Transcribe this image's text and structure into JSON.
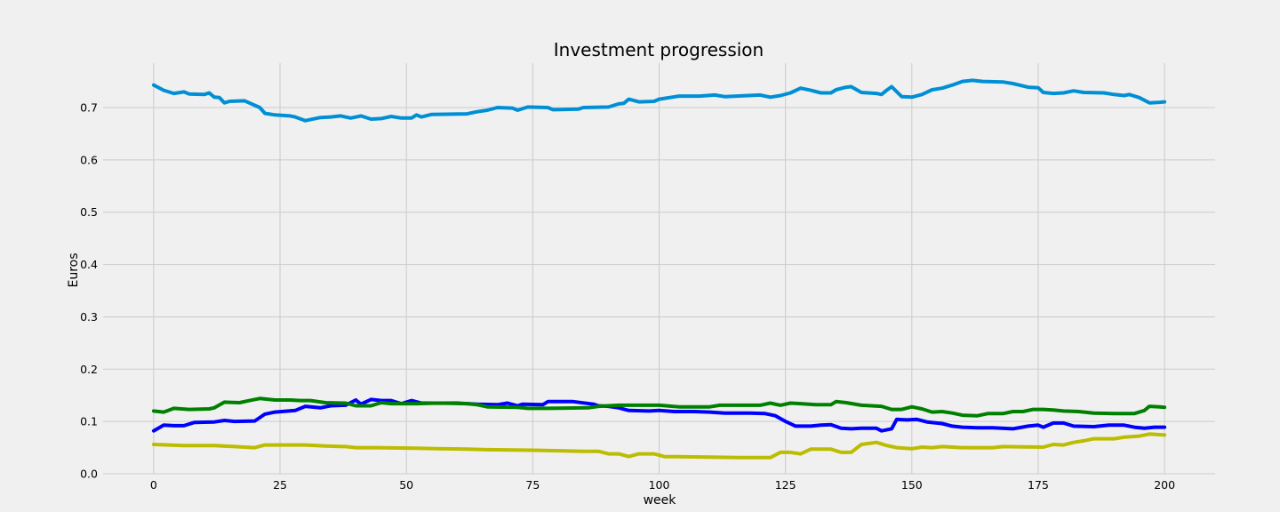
{
  "chart_data": {
    "type": "line",
    "title": "Investment progression",
    "xlabel": "week",
    "ylabel": "Euros",
    "xlim": [
      -10,
      210
    ],
    "ylim": [
      0.0,
      0.785
    ],
    "xticks": [
      0,
      25,
      50,
      75,
      100,
      125,
      150,
      175,
      200
    ],
    "xtick_labels": [
      "0",
      "25",
      "50",
      "75",
      "100",
      "125",
      "150",
      "175",
      "200"
    ],
    "yticks": [
      0.0,
      0.1,
      0.2,
      0.3,
      0.4,
      0.5,
      0.6,
      0.7
    ],
    "ytick_labels": [
      "0.0",
      "0.1",
      "0.2",
      "0.3",
      "0.4",
      "0.5",
      "0.6",
      "0.7"
    ],
    "grid": true,
    "background": "#f0f0f0",
    "series": [
      {
        "color": "#008fd5",
        "points": [
          [
            0,
            0.743
          ],
          [
            2,
            0.733
          ],
          [
            4,
            0.727
          ],
          [
            6,
            0.73
          ],
          [
            7,
            0.726
          ],
          [
            10,
            0.725
          ],
          [
            11,
            0.728
          ],
          [
            12,
            0.72
          ],
          [
            13,
            0.719
          ],
          [
            14,
            0.709
          ],
          [
            15,
            0.712
          ],
          [
            18,
            0.713
          ],
          [
            21,
            0.7
          ],
          [
            22,
            0.689
          ],
          [
            24,
            0.686
          ],
          [
            27,
            0.684
          ],
          [
            28,
            0.682
          ],
          [
            30,
            0.675
          ],
          [
            33,
            0.681
          ],
          [
            35,
            0.682
          ],
          [
            37,
            0.684
          ],
          [
            39,
            0.68
          ],
          [
            41,
            0.684
          ],
          [
            43,
            0.678
          ],
          [
            45,
            0.679
          ],
          [
            47,
            0.683
          ],
          [
            49,
            0.68
          ],
          [
            51,
            0.68
          ],
          [
            52,
            0.686
          ],
          [
            53,
            0.682
          ],
          [
            55,
            0.687
          ],
          [
            62,
            0.688
          ],
          [
            64,
            0.692
          ],
          [
            66,
            0.695
          ],
          [
            68,
            0.7
          ],
          [
            71,
            0.699
          ],
          [
            72,
            0.695
          ],
          [
            74,
            0.701
          ],
          [
            78,
            0.7
          ],
          [
            79,
            0.696
          ],
          [
            84,
            0.697
          ],
          [
            85,
            0.7
          ],
          [
            90,
            0.701
          ],
          [
            92,
            0.707
          ],
          [
            93,
            0.708
          ],
          [
            94,
            0.716
          ],
          [
            96,
            0.711
          ],
          [
            99,
            0.712
          ],
          [
            100,
            0.716
          ],
          [
            104,
            0.722
          ],
          [
            108,
            0.722
          ],
          [
            111,
            0.724
          ],
          [
            113,
            0.721
          ],
          [
            120,
            0.724
          ],
          [
            122,
            0.72
          ],
          [
            124,
            0.723
          ],
          [
            126,
            0.728
          ],
          [
            128,
            0.737
          ],
          [
            130,
            0.733
          ],
          [
            132,
            0.728
          ],
          [
            134,
            0.728
          ],
          [
            135,
            0.734
          ],
          [
            137,
            0.739
          ],
          [
            138,
            0.74
          ],
          [
            140,
            0.729
          ],
          [
            143,
            0.727
          ],
          [
            144,
            0.725
          ],
          [
            145,
            0.733
          ],
          [
            146,
            0.74
          ],
          [
            148,
            0.721
          ],
          [
            150,
            0.72
          ],
          [
            152,
            0.725
          ],
          [
            154,
            0.734
          ],
          [
            156,
            0.737
          ],
          [
            158,
            0.743
          ],
          [
            160,
            0.75
          ],
          [
            162,
            0.752
          ],
          [
            164,
            0.75
          ],
          [
            168,
            0.749
          ],
          [
            170,
            0.746
          ],
          [
            173,
            0.739
          ],
          [
            175,
            0.738
          ],
          [
            176,
            0.729
          ],
          [
            178,
            0.727
          ],
          [
            180,
            0.728
          ],
          [
            182,
            0.732
          ],
          [
            184,
            0.729
          ],
          [
            188,
            0.728
          ],
          [
            190,
            0.725
          ],
          [
            192,
            0.723
          ],
          [
            193,
            0.725
          ],
          [
            195,
            0.719
          ],
          [
            197,
            0.709
          ],
          [
            199,
            0.71
          ],
          [
            200,
            0.711
          ]
        ]
      },
      {
        "color": "#0000ff",
        "points": [
          [
            0,
            0.082
          ],
          [
            2,
            0.093
          ],
          [
            4,
            0.092
          ],
          [
            6,
            0.092
          ],
          [
            8,
            0.098
          ],
          [
            12,
            0.099
          ],
          [
            14,
            0.102
          ],
          [
            16,
            0.1
          ],
          [
            20,
            0.101
          ],
          [
            22,
            0.114
          ],
          [
            24,
            0.118
          ],
          [
            28,
            0.121
          ],
          [
            30,
            0.129
          ],
          [
            33,
            0.126
          ],
          [
            35,
            0.13
          ],
          [
            38,
            0.131
          ],
          [
            40,
            0.141
          ],
          [
            41,
            0.133
          ],
          [
            43,
            0.142
          ],
          [
            45,
            0.14
          ],
          [
            47,
            0.14
          ],
          [
            49,
            0.134
          ],
          [
            51,
            0.14
          ],
          [
            53,
            0.135
          ],
          [
            55,
            0.135
          ],
          [
            60,
            0.135
          ],
          [
            64,
            0.133
          ],
          [
            68,
            0.132
          ],
          [
            70,
            0.135
          ],
          [
            72,
            0.13
          ],
          [
            73,
            0.133
          ],
          [
            77,
            0.132
          ],
          [
            78,
            0.138
          ],
          [
            83,
            0.138
          ],
          [
            87,
            0.133
          ],
          [
            88,
            0.13
          ],
          [
            90,
            0.129
          ],
          [
            92,
            0.126
          ],
          [
            94,
            0.121
          ],
          [
            98,
            0.12
          ],
          [
            100,
            0.121
          ],
          [
            103,
            0.119
          ],
          [
            107,
            0.119
          ],
          [
            110,
            0.118
          ],
          [
            113,
            0.116
          ],
          [
            118,
            0.116
          ],
          [
            121,
            0.115
          ],
          [
            123,
            0.111
          ],
          [
            125,
            0.1
          ],
          [
            127,
            0.091
          ],
          [
            130,
            0.091
          ],
          [
            132,
            0.093
          ],
          [
            134,
            0.094
          ],
          [
            136,
            0.087
          ],
          [
            138,
            0.086
          ],
          [
            140,
            0.087
          ],
          [
            143,
            0.087
          ],
          [
            144,
            0.082
          ],
          [
            146,
            0.086
          ],
          [
            147,
            0.104
          ],
          [
            149,
            0.103
          ],
          [
            151,
            0.104
          ],
          [
            153,
            0.099
          ],
          [
            156,
            0.096
          ],
          [
            158,
            0.091
          ],
          [
            160,
            0.089
          ],
          [
            163,
            0.088
          ],
          [
            166,
            0.088
          ],
          [
            170,
            0.086
          ],
          [
            173,
            0.091
          ],
          [
            175,
            0.093
          ],
          [
            176,
            0.089
          ],
          [
            178,
            0.097
          ],
          [
            180,
            0.097
          ],
          [
            182,
            0.091
          ],
          [
            186,
            0.09
          ],
          [
            189,
            0.093
          ],
          [
            192,
            0.093
          ],
          [
            194,
            0.089
          ],
          [
            196,
            0.087
          ],
          [
            198,
            0.089
          ],
          [
            200,
            0.089
          ]
        ]
      },
      {
        "color": "#008000",
        "points": [
          [
            0,
            0.12
          ],
          [
            2,
            0.118
          ],
          [
            4,
            0.125
          ],
          [
            7,
            0.123
          ],
          [
            11,
            0.124
          ],
          [
            12,
            0.126
          ],
          [
            14,
            0.137
          ],
          [
            17,
            0.136
          ],
          [
            19,
            0.14
          ],
          [
            21,
            0.144
          ],
          [
            24,
            0.141
          ],
          [
            27,
            0.141
          ],
          [
            29,
            0.14
          ],
          [
            31,
            0.14
          ],
          [
            34,
            0.136
          ],
          [
            38,
            0.135
          ],
          [
            40,
            0.13
          ],
          [
            43,
            0.13
          ],
          [
            45,
            0.136
          ],
          [
            47,
            0.134
          ],
          [
            52,
            0.134
          ],
          [
            56,
            0.135
          ],
          [
            62,
            0.134
          ],
          [
            64,
            0.132
          ],
          [
            66,
            0.128
          ],
          [
            72,
            0.127
          ],
          [
            74,
            0.125
          ],
          [
            78,
            0.125
          ],
          [
            86,
            0.126
          ],
          [
            88,
            0.129
          ],
          [
            92,
            0.131
          ],
          [
            94,
            0.131
          ],
          [
            98,
            0.131
          ],
          [
            100,
            0.131
          ],
          [
            104,
            0.128
          ],
          [
            108,
            0.128
          ],
          [
            110,
            0.128
          ],
          [
            112,
            0.131
          ],
          [
            116,
            0.131
          ],
          [
            120,
            0.131
          ],
          [
            122,
            0.135
          ],
          [
            124,
            0.131
          ],
          [
            126,
            0.135
          ],
          [
            128,
            0.134
          ],
          [
            131,
            0.132
          ],
          [
            134,
            0.132
          ],
          [
            135,
            0.138
          ],
          [
            137,
            0.136
          ],
          [
            140,
            0.131
          ],
          [
            142,
            0.13
          ],
          [
            144,
            0.129
          ],
          [
            146,
            0.123
          ],
          [
            148,
            0.123
          ],
          [
            150,
            0.128
          ],
          [
            152,
            0.124
          ],
          [
            154,
            0.118
          ],
          [
            156,
            0.119
          ],
          [
            158,
            0.116
          ],
          [
            160,
            0.112
          ],
          [
            163,
            0.111
          ],
          [
            165,
            0.115
          ],
          [
            168,
            0.115
          ],
          [
            170,
            0.119
          ],
          [
            172,
            0.119
          ],
          [
            174,
            0.123
          ],
          [
            176,
            0.123
          ],
          [
            178,
            0.122
          ],
          [
            180,
            0.12
          ],
          [
            183,
            0.119
          ],
          [
            186,
            0.116
          ],
          [
            190,
            0.115
          ],
          [
            194,
            0.115
          ],
          [
            196,
            0.121
          ],
          [
            197,
            0.129
          ],
          [
            199,
            0.128
          ],
          [
            200,
            0.127
          ]
        ]
      },
      {
        "color": "#bcbc00",
        "points": [
          [
            0,
            0.056
          ],
          [
            6,
            0.054
          ],
          [
            12,
            0.054
          ],
          [
            16,
            0.052
          ],
          [
            20,
            0.05
          ],
          [
            22,
            0.055
          ],
          [
            30,
            0.055
          ],
          [
            34,
            0.053
          ],
          [
            38,
            0.052
          ],
          [
            40,
            0.05
          ],
          [
            44,
            0.05
          ],
          [
            52,
            0.049
          ],
          [
            56,
            0.048
          ],
          [
            62,
            0.047
          ],
          [
            66,
            0.046
          ],
          [
            75,
            0.045
          ],
          [
            85,
            0.043
          ],
          [
            88,
            0.043
          ],
          [
            90,
            0.038
          ],
          [
            92,
            0.038
          ],
          [
            94,
            0.033
          ],
          [
            96,
            0.038
          ],
          [
            99,
            0.038
          ],
          [
            101,
            0.033
          ],
          [
            110,
            0.032
          ],
          [
            116,
            0.031
          ],
          [
            122,
            0.031
          ],
          [
            124,
            0.041
          ],
          [
            126,
            0.041
          ],
          [
            128,
            0.038
          ],
          [
            130,
            0.047
          ],
          [
            134,
            0.047
          ],
          [
            136,
            0.041
          ],
          [
            138,
            0.041
          ],
          [
            140,
            0.056
          ],
          [
            143,
            0.06
          ],
          [
            145,
            0.054
          ],
          [
            147,
            0.05
          ],
          [
            150,
            0.048
          ],
          [
            152,
            0.051
          ],
          [
            154,
            0.05
          ],
          [
            156,
            0.052
          ],
          [
            160,
            0.05
          ],
          [
            166,
            0.05
          ],
          [
            168,
            0.052
          ],
          [
            176,
            0.051
          ],
          [
            178,
            0.056
          ],
          [
            180,
            0.055
          ],
          [
            182,
            0.06
          ],
          [
            184,
            0.063
          ],
          [
            186,
            0.067
          ],
          [
            190,
            0.067
          ],
          [
            192,
            0.07
          ],
          [
            195,
            0.072
          ],
          [
            197,
            0.076
          ],
          [
            200,
            0.074
          ]
        ]
      }
    ]
  }
}
